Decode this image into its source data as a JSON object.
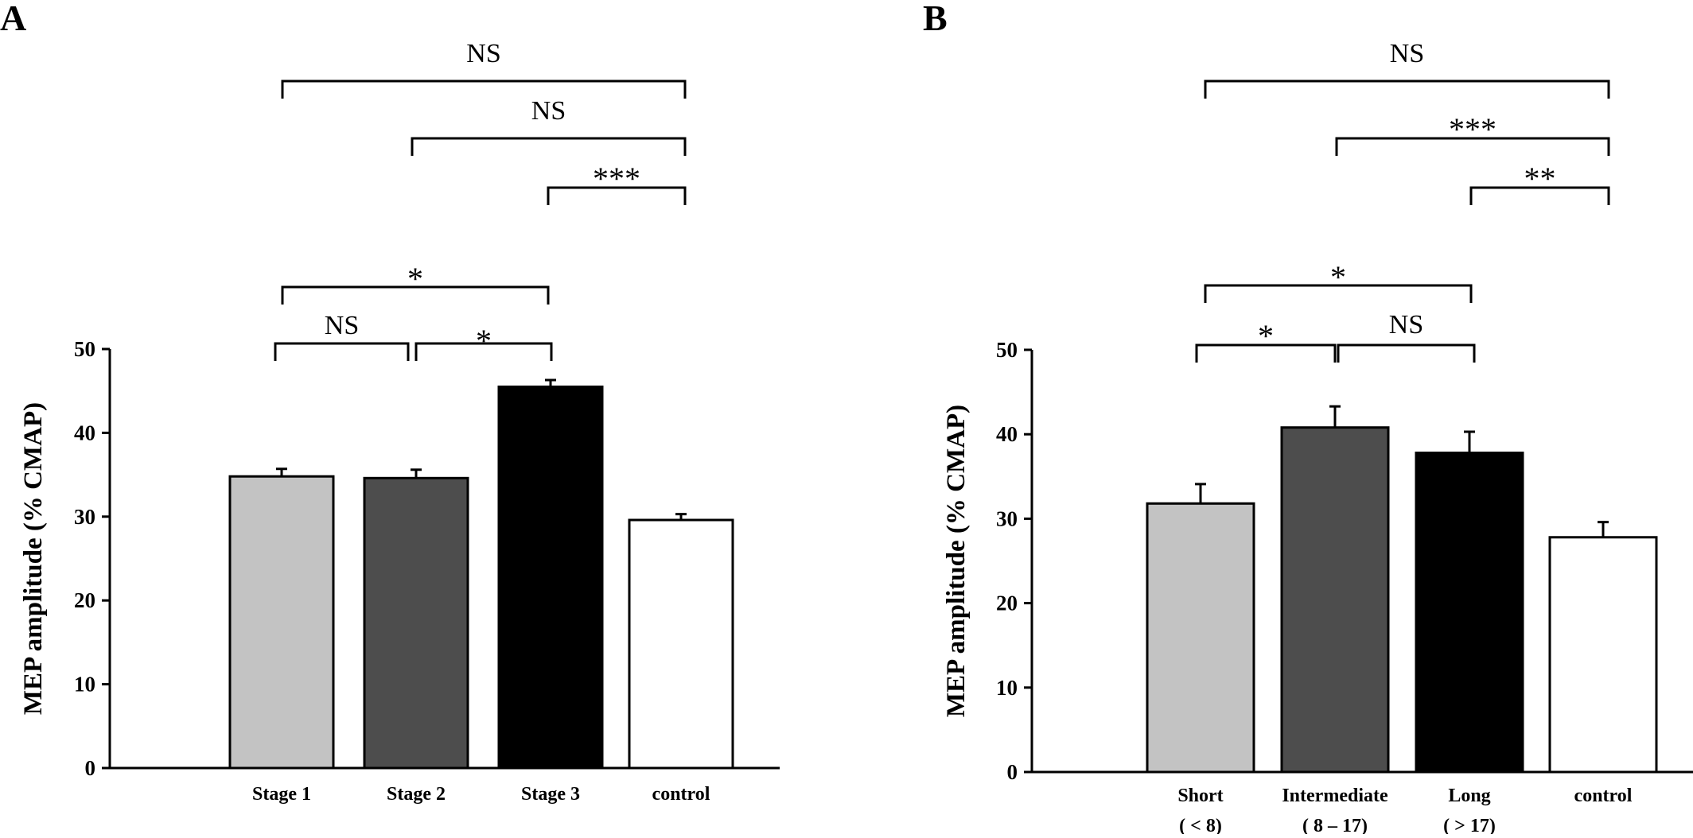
{
  "chart_data": [
    {
      "type": "bar",
      "panel": "A",
      "ylabel": "MEP amplitude  (% CMAP)",
      "ylim": [
        0,
        50
      ],
      "yticks": [
        0,
        10,
        20,
        30,
        40,
        50
      ],
      "categories": [
        {
          "lines": [
            "Stage 1"
          ]
        },
        {
          "lines": [
            "Stage 2"
          ]
        },
        {
          "lines": [
            "Stage 3"
          ]
        },
        {
          "lines": [
            "control"
          ]
        }
      ],
      "values": [
        34.8,
        34.6,
        45.5,
        29.6
      ],
      "errors": [
        0.9,
        1.0,
        0.8,
        0.7
      ],
      "bar_colors": [
        "#c3c3c3",
        "#4d4d4d",
        "#000000",
        "#ffffff"
      ],
      "comparisons": [
        {
          "from": 0,
          "to": 3,
          "label": "NS"
        },
        {
          "from": 1,
          "to": 3,
          "label": "NS"
        },
        {
          "from": 2,
          "to": 3,
          "label": "***"
        },
        {
          "from": 0,
          "to": 2,
          "label": "*"
        },
        {
          "from": 0,
          "to": 1,
          "label": "NS"
        },
        {
          "from": 1,
          "to": 2,
          "label": "*"
        }
      ]
    },
    {
      "type": "bar",
      "panel": "B",
      "ylabel": "MEP amplitude  (% CMAP)",
      "ylim": [
        0,
        50
      ],
      "yticks": [
        0,
        10,
        20,
        30,
        40,
        50
      ],
      "categories": [
        {
          "lines": [
            "Short",
            "( < 8)"
          ]
        },
        {
          "lines": [
            "Intermediate",
            "( 8 – 17)"
          ]
        },
        {
          "lines": [
            "Long",
            "( > 17)"
          ]
        },
        {
          "lines": [
            "control"
          ]
        }
      ],
      "values": [
        31.8,
        40.8,
        37.8,
        27.8
      ],
      "errors": [
        2.3,
        2.5,
        2.5,
        1.8
      ],
      "bar_colors": [
        "#c3c3c3",
        "#4d4d4d",
        "#000000",
        "#ffffff"
      ],
      "comparisons": [
        {
          "from": 0,
          "to": 3,
          "label": "NS"
        },
        {
          "from": 1,
          "to": 3,
          "label": "***"
        },
        {
          "from": 2,
          "to": 3,
          "label": "**"
        },
        {
          "from": 0,
          "to": 2,
          "label": "*"
        },
        {
          "from": 0,
          "to": 1,
          "label": "*"
        },
        {
          "from": 1,
          "to": 2,
          "label": "NS"
        }
      ]
    }
  ]
}
